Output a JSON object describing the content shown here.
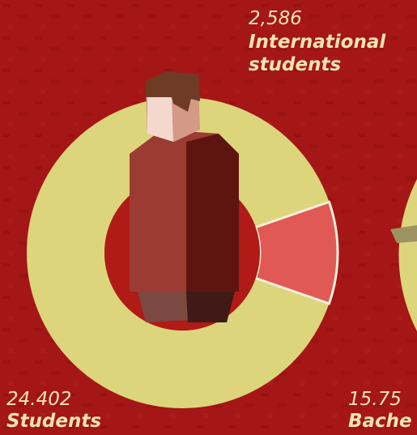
{
  "international": {
    "value": 2586,
    "label": "2,586",
    "caption": [
      "International",
      "students"
    ]
  },
  "students": {
    "value": 24402,
    "label": "24.402",
    "caption": "Students"
  },
  "bachelor": {
    "label": "15.75",
    "caption": "Bache"
  }
}
